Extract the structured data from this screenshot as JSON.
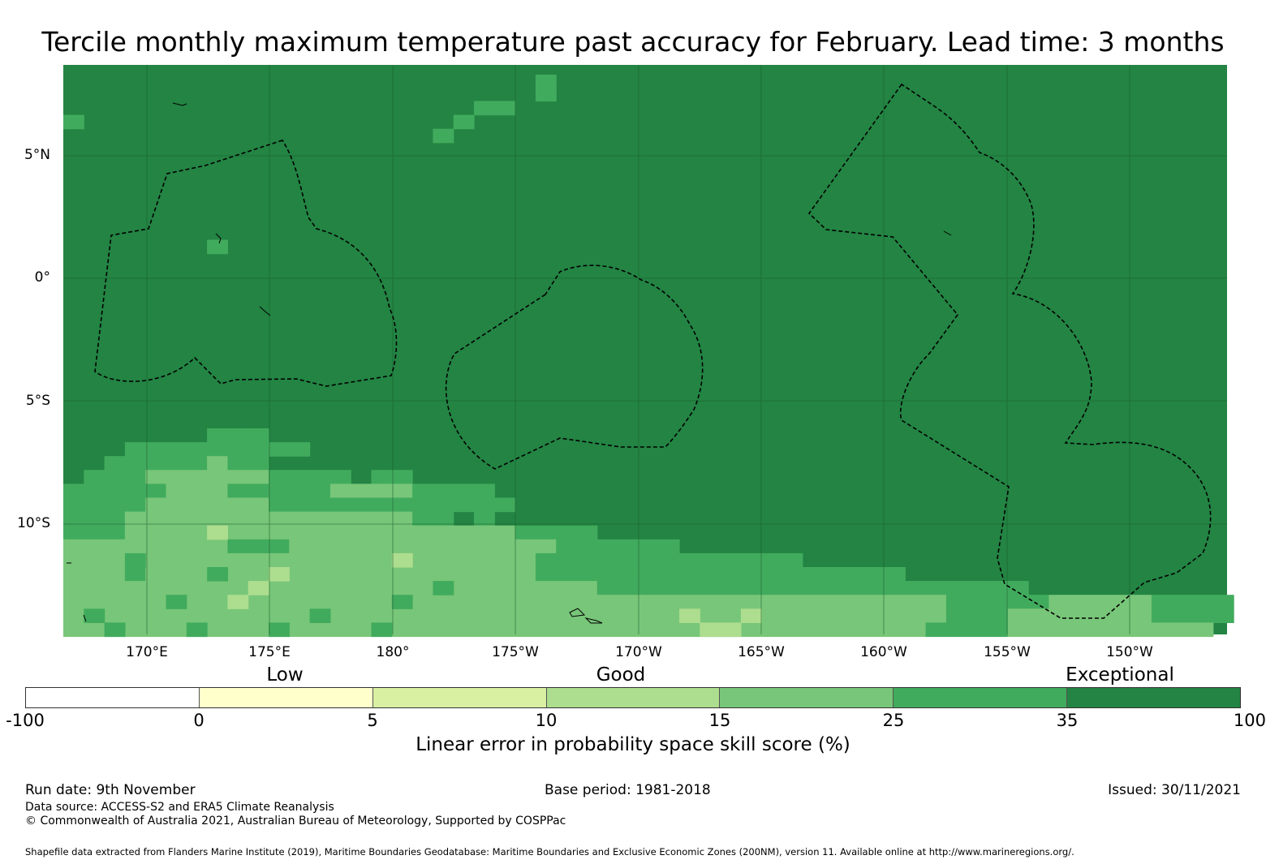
{
  "title": "Tercile monthly maximum temperature past accuracy for February. Lead time: 3 months",
  "map": {
    "lat_labels": [
      "5°N",
      "0°",
      "5°S",
      "10°S"
    ],
    "lon_labels": [
      "170°E",
      "175°E",
      "180°",
      "175°W",
      "170°W",
      "165°W",
      "160°W",
      "155°W",
      "150°W"
    ],
    "colors": {
      "exceptional": "#238443",
      "very_good": "#41ab5d",
      "good_high": "#78c679",
      "good": "#addd8e",
      "fair": "#d9f0a3",
      "low": "#ffffcc",
      "none": "#ffffff"
    }
  },
  "legend": {
    "categories": [
      "Low",
      "Good",
      "Exceptional"
    ],
    "ticks": [
      "-100",
      "0",
      "5",
      "10",
      "15",
      "25",
      "35",
      "100"
    ],
    "segment_colors": [
      "#ffffff",
      "#ffffcc",
      "#d9f0a3",
      "#addd8e",
      "#78c679",
      "#41ab5d",
      "#238443"
    ],
    "label": "Linear error in probability space skill score (%)"
  },
  "footer": {
    "run_date": "Run date: 9th November",
    "base_period": "Base period: 1981-2018",
    "issued": "Issued: 30/11/2021",
    "data_source": "Data source: ACCESS-S2 and ERA5 Climate Reanalysis",
    "copyright": "© Commonwealth of Australia 2021, Australian Bureau of Meteorology, Supported by COSPPac",
    "shapefile": "Shapefile data extracted from Flanders Marine Institute (2019), Maritime Boundaries Geodatabase: Maritime Boundaries and Exclusive Economic Zones (200NM), version 11. Available online at http://www.marineregions.org/."
  }
}
